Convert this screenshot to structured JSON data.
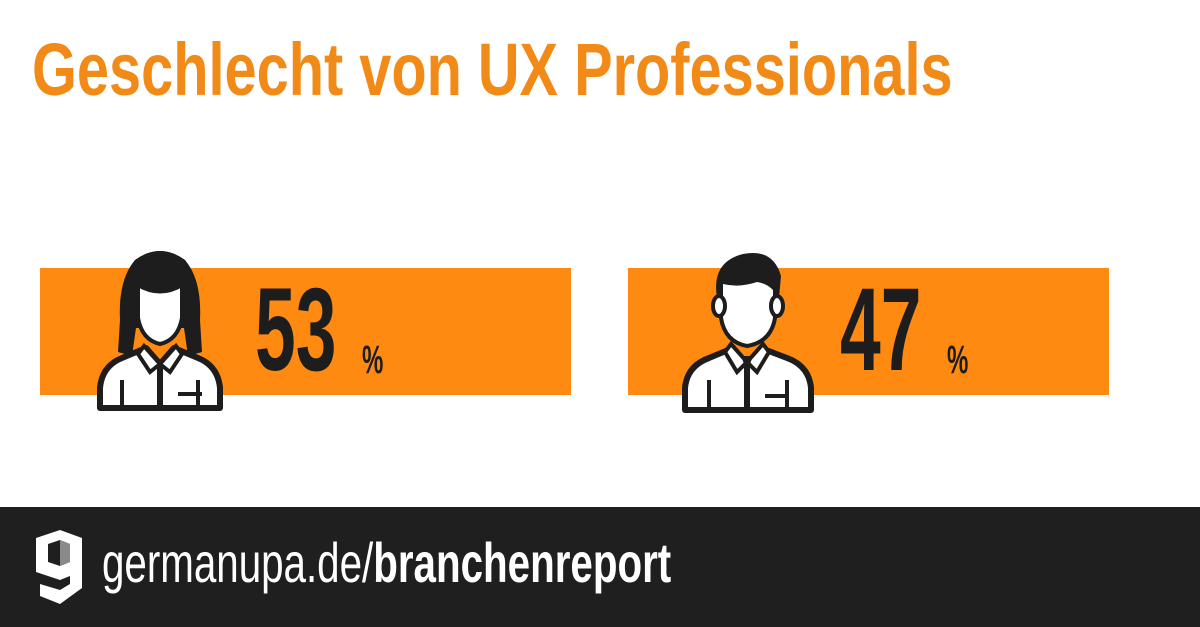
{
  "title": "Geschlecht von UX Professionals",
  "stats": {
    "female": {
      "value": "53",
      "unit": "%",
      "icon": "woman-avatar-icon"
    },
    "male": {
      "value": "47",
      "unit": "%",
      "icon": "man-avatar-icon"
    }
  },
  "footer": {
    "domain": "germanupa.de/",
    "path": "branchenreport",
    "logo": "germanupa-logo-icon"
  },
  "colors": {
    "accent": "#ff8a12",
    "title": "#f28a17",
    "text_dark": "#1d1d1d",
    "footer_bg": "#1f1f1f"
  }
}
